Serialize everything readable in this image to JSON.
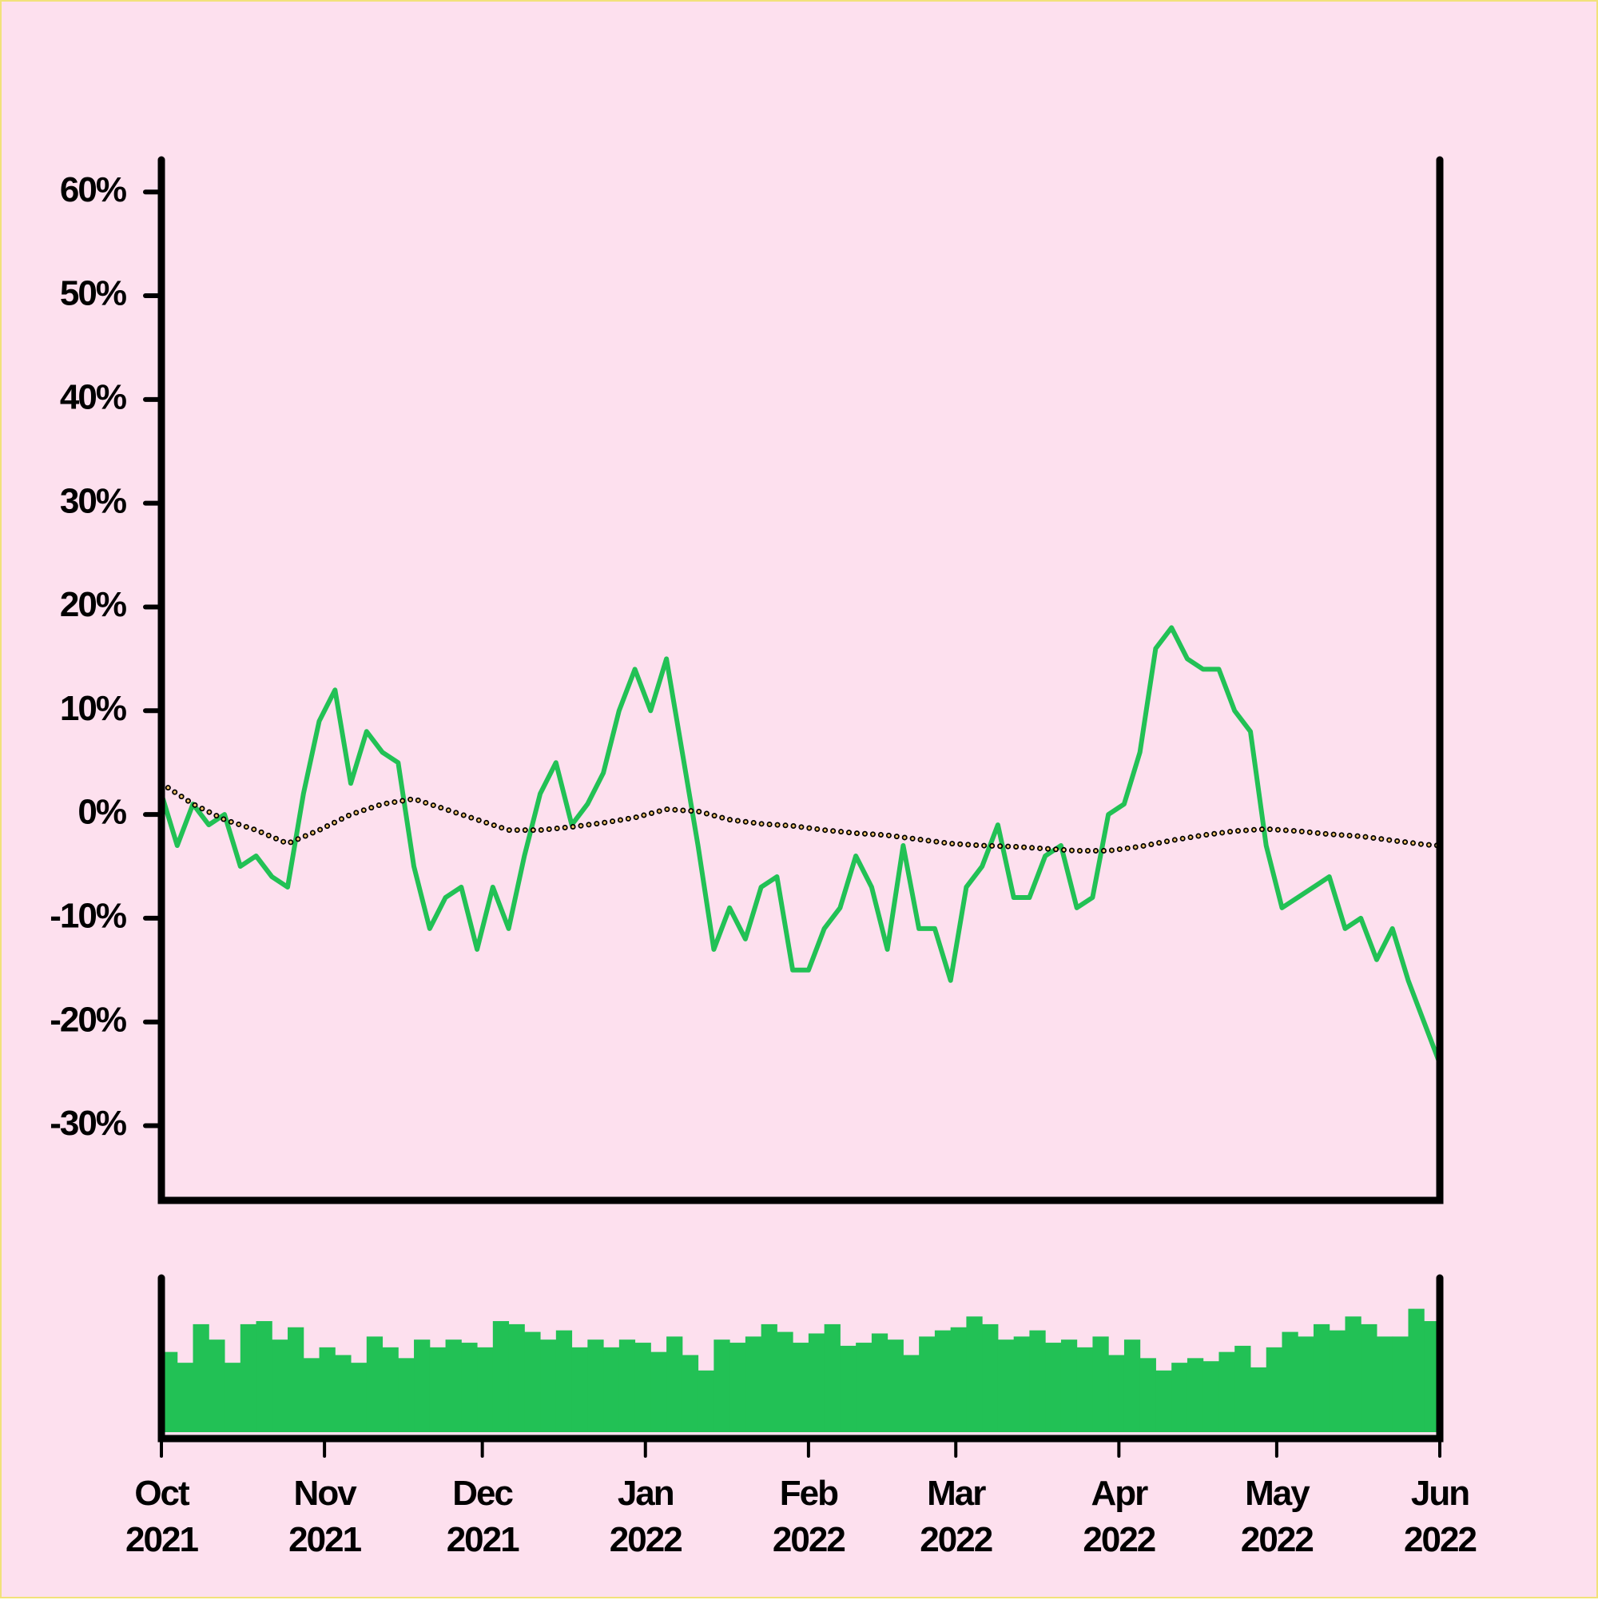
{
  "chart_data": [
    {
      "type": "line",
      "x": [
        "2021-10-01",
        "2021-10-04",
        "2021-10-07",
        "2021-10-10",
        "2021-10-13",
        "2021-10-16",
        "2021-10-19",
        "2021-10-22",
        "2021-10-25",
        "2021-10-28",
        "2021-10-31",
        "2021-11-03",
        "2021-11-06",
        "2021-11-09",
        "2021-11-12",
        "2021-11-15",
        "2021-11-18",
        "2021-11-21",
        "2021-11-24",
        "2021-11-27",
        "2021-11-30",
        "2021-12-03",
        "2021-12-06",
        "2021-12-09",
        "2021-12-12",
        "2021-12-15",
        "2021-12-18",
        "2021-12-21",
        "2021-12-24",
        "2021-12-27",
        "2021-12-30",
        "2022-01-02",
        "2022-01-05",
        "2022-01-08",
        "2022-01-11",
        "2022-01-14",
        "2022-01-17",
        "2022-01-20",
        "2022-01-23",
        "2022-01-26",
        "2022-01-29",
        "2022-02-01",
        "2022-02-04",
        "2022-02-07",
        "2022-02-10",
        "2022-02-13",
        "2022-02-16",
        "2022-02-19",
        "2022-02-22",
        "2022-02-25",
        "2022-02-28",
        "2022-03-03",
        "2022-03-06",
        "2022-03-09",
        "2022-03-12",
        "2022-03-15",
        "2022-03-18",
        "2022-03-21",
        "2022-03-24",
        "2022-03-27",
        "2022-03-30",
        "2022-04-02",
        "2022-04-05",
        "2022-04-08",
        "2022-04-11",
        "2022-04-14",
        "2022-04-17",
        "2022-04-20",
        "2022-04-23",
        "2022-04-26",
        "2022-04-29",
        "2022-05-02",
        "2022-05-05",
        "2022-05-08",
        "2022-05-11",
        "2022-05-14",
        "2022-05-17",
        "2022-05-20",
        "2022-05-23",
        "2022-05-26",
        "2022-05-29",
        "2022-06-01"
      ],
      "series": [
        {
          "color": "#22c155",
          "style": "solid",
          "values": [
            2,
            -3,
            1,
            -1,
            0,
            -5,
            -4,
            -6,
            -7,
            2,
            9,
            12,
            3,
            8,
            6,
            5,
            -5,
            -11,
            -8,
            -7,
            -13,
            -7,
            -11,
            -4,
            2,
            5,
            -1,
            1,
            4,
            10,
            14,
            10,
            15,
            6,
            -3,
            -13,
            -9,
            -12,
            -7,
            -6,
            -15,
            -15,
            -11,
            -9,
            -4,
            -7,
            -13,
            -3,
            -11,
            -11,
            -16,
            -7,
            -5,
            -1,
            -8,
            -8,
            -4,
            -3,
            -9,
            -8,
            0,
            1,
            6,
            16,
            18,
            15,
            14,
            14,
            10,
            8,
            -3,
            -9,
            -8,
            -7,
            -6,
            -11,
            -10,
            -14,
            -11,
            -16,
            -20,
            -24
          ]
        },
        {
          "color": "#f4c46a",
          "style": "dotted",
          "x": [
            "2021-10-01",
            "2021-10-07",
            "2021-10-13",
            "2021-10-19",
            "2021-10-25",
            "2021-10-31",
            "2021-11-06",
            "2021-11-12",
            "2021-11-18",
            "2021-11-24",
            "2021-11-30",
            "2021-12-06",
            "2021-12-12",
            "2021-12-18",
            "2021-12-24",
            "2021-12-30",
            "2022-01-05",
            "2022-01-11",
            "2022-01-17",
            "2022-01-23",
            "2022-01-29",
            "2022-02-04",
            "2022-02-10",
            "2022-02-16",
            "2022-02-22",
            "2022-02-28",
            "2022-03-06",
            "2022-03-12",
            "2022-03-18",
            "2022-03-24",
            "2022-03-30",
            "2022-04-05",
            "2022-04-11",
            "2022-04-17",
            "2022-04-23",
            "2022-04-29",
            "2022-05-05",
            "2022-05-11",
            "2022-05-17",
            "2022-05-23",
            "2022-05-29",
            "2022-06-01"
          ],
          "values": [
            3,
            1,
            -0.5,
            -1.5,
            -2.8,
            -1.5,
            0,
            1,
            1.5,
            0.5,
            -0.5,
            -1.5,
            -1.5,
            -1.2,
            -0.8,
            -0.3,
            0.5,
            0.3,
            -0.5,
            -0.9,
            -1.1,
            -1.5,
            -1.8,
            -2,
            -2.4,
            -2.8,
            -3,
            -3.1,
            -3.3,
            -3.5,
            -3.5,
            -3.1,
            -2.5,
            -2,
            -1.6,
            -1.4,
            -1.6,
            -1.9,
            -2.1,
            -2.5,
            -2.9,
            -3
          ]
        }
      ],
      "xlim": [
        "2021-10-01",
        "2022-06-01"
      ],
      "ylim": [
        -37.2,
        63.1
      ],
      "yticks": [
        {
          "value": 60,
          "label": "60%"
        },
        {
          "value": 50,
          "label": "50%"
        },
        {
          "value": 40,
          "label": "40%"
        },
        {
          "value": 30,
          "label": "30%"
        },
        {
          "value": 20,
          "label": "20%"
        },
        {
          "value": 10,
          "label": "10%"
        },
        {
          "value": 0,
          "label": "0%"
        },
        {
          "value": -10,
          "label": "-10%"
        },
        {
          "value": -20,
          "label": "-20%"
        },
        {
          "value": -30,
          "label": "-30%"
        }
      ]
    },
    {
      "type": "bar",
      "color": "#22c155",
      "values": [
        52,
        45,
        70,
        60,
        45,
        70,
        72,
        60,
        68,
        48,
        55,
        50,
        45,
        62,
        55,
        48,
        60,
        55,
        60,
        58,
        55,
        72,
        70,
        65,
        60,
        66,
        55,
        60,
        55,
        60,
        58,
        52,
        62,
        50,
        40,
        60,
        58,
        62,
        70,
        65,
        58,
        64,
        70,
        56,
        58,
        64,
        60,
        50,
        62,
        66,
        68,
        75,
        70,
        60,
        62,
        66,
        58,
        60,
        55,
        62,
        50,
        60,
        48,
        40,
        45,
        48,
        46,
        52,
        56,
        42,
        55,
        65,
        62,
        70,
        66,
        75,
        70,
        62,
        62,
        80,
        72,
        55
      ],
      "ylim": [
        0,
        100
      ],
      "xlim": [
        "2021-10-01",
        "2022-06-01"
      ],
      "xticks": [
        {
          "value": "2021-10-01",
          "label": "Oct\n2021"
        },
        {
          "value": "2021-11-01",
          "label": "Nov\n2021"
        },
        {
          "value": "2021-12-01",
          "label": "Dec\n2021"
        },
        {
          "value": "2022-01-01",
          "label": "Jan\n2022"
        },
        {
          "value": "2022-02-01",
          "label": "Feb\n2022"
        },
        {
          "value": "2022-03-01",
          "label": "Mar\n2022"
        },
        {
          "value": "2022-04-01",
          "label": "Apr\n2022"
        },
        {
          "value": "2022-05-01",
          "label": "May\n2022"
        },
        {
          "value": "2022-06-01",
          "label": "Jun\n2022"
        }
      ]
    }
  ]
}
